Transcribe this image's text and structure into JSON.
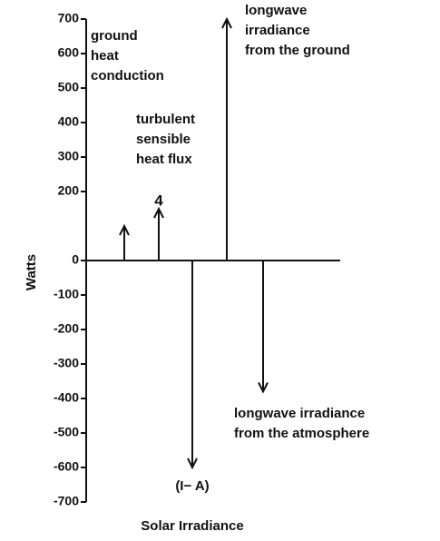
{
  "chart_data": {
    "type": "arrow",
    "ylabel": "Watts",
    "ylim": [
      -700,
      700
    ],
    "yticks": [
      700,
      600,
      500,
      400,
      300,
      200,
      0,
      -100,
      -200,
      -300,
      -400,
      -500,
      -600,
      -700
    ],
    "categories": [
      "ground\nheat\nconduction",
      "turbulent\nsensible\nheat flux",
      "(I− A)",
      "longwave\nirradiance\nfrom the ground",
      "longwave irradiance\nfrom the atmosphere"
    ],
    "values": [
      100,
      150,
      -600,
      700,
      -380
    ],
    "annotations": [
      "4",
      "Solar Irradiance"
    ],
    "color": "#111111"
  }
}
